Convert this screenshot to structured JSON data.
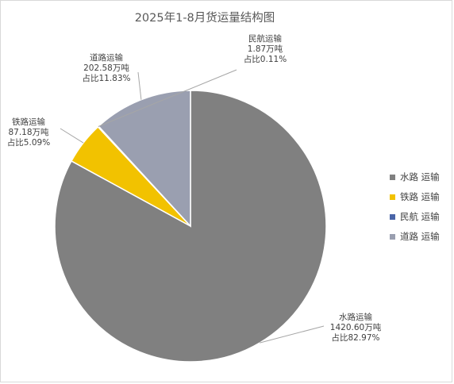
{
  "chart_data": {
    "type": "pie",
    "title": "2025年1-8月货运量结构图",
    "unit": "万吨",
    "slices": [
      {
        "name": "水路运输",
        "legend": "水路 运输",
        "value": 1420.6,
        "value_text": "1420.60万吨",
        "share_text": "占比82.97%",
        "share": 82.97,
        "color": "#808080"
      },
      {
        "name": "铁路运输",
        "legend": "铁路 运输",
        "value": 87.18,
        "value_text": "87.18万吨",
        "share_text": "占比5.09%",
        "share": 5.09,
        "color": "#f2c200"
      },
      {
        "name": "民航运输",
        "legend": "民航 运输",
        "value": 1.87,
        "value_text": "1.87万吨",
        "share_text": "占比0.11%",
        "share": 0.11,
        "color": "#4a65a8"
      },
      {
        "name": "道路运输",
        "legend": "道路 运输",
        "value": 202.58,
        "value_text": "202.58万吨",
        "share_text": "占比11.83%",
        "share": 11.83,
        "color": "#9a9fb0"
      }
    ],
    "legend_position": "right"
  }
}
